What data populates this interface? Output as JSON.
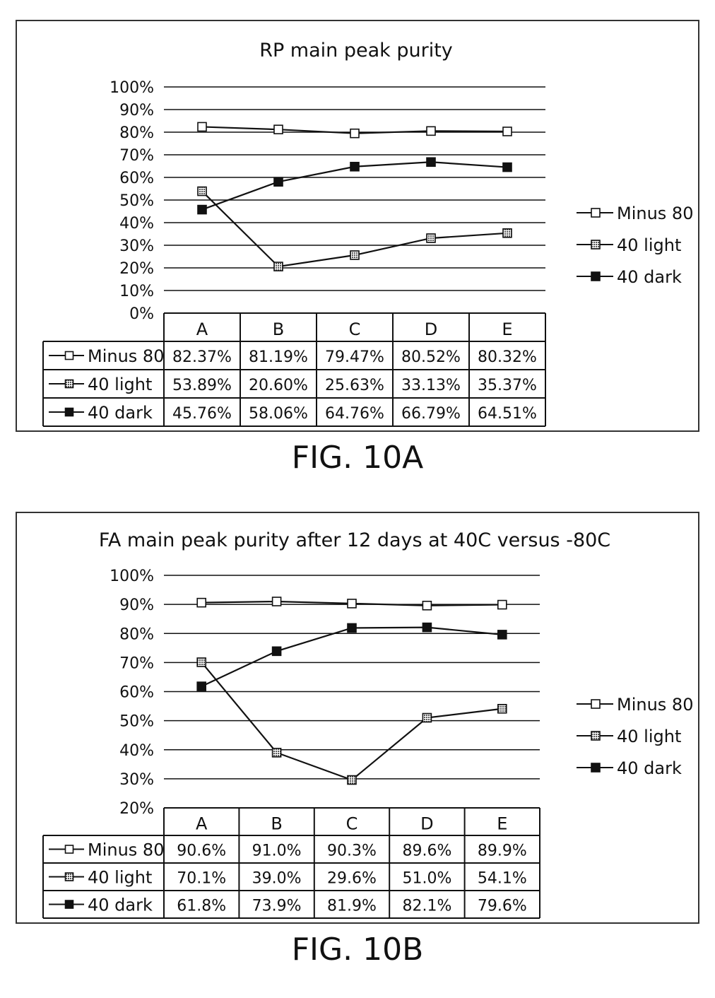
{
  "chart_data": [
    {
      "type": "line",
      "title": "RP main peak purity",
      "categories": [
        "A",
        "B",
        "C",
        "D",
        "E"
      ],
      "ylim": [
        0,
        100
      ],
      "y_ticks": [
        "0%",
        "10%",
        "20%",
        "30%",
        "40%",
        "50%",
        "60%",
        "70%",
        "80%",
        "90%",
        "100%"
      ],
      "grid": true,
      "legend_position": "right",
      "data_table": true,
      "series": [
        {
          "name": "Minus 80",
          "marker": "open-square",
          "values": [
            82.37,
            81.19,
            79.47,
            80.52,
            80.32
          ],
          "labels": [
            "82.37%",
            "81.19%",
            "79.47%",
            "80.52%",
            "80.32%"
          ]
        },
        {
          "name": "40 light",
          "marker": "hatched-square",
          "values": [
            53.89,
            20.6,
            25.63,
            33.13,
            35.37
          ],
          "labels": [
            "53.89%",
            "20.60%",
            "25.63%",
            "33.13%",
            "35.37%"
          ]
        },
        {
          "name": "40 dark",
          "marker": "filled-square",
          "values": [
            45.76,
            58.06,
            64.76,
            66.79,
            64.51
          ],
          "labels": [
            "45.76%",
            "58.06%",
            "64.76%",
            "66.79%",
            "64.51%"
          ]
        }
      ]
    },
    {
      "type": "line",
      "title": "FA main peak purity after 12 days at 40C versus -80C",
      "categories": [
        "A",
        "B",
        "C",
        "D",
        "E"
      ],
      "ylim": [
        20,
        100
      ],
      "y_ticks": [
        "20%",
        "30%",
        "40%",
        "50%",
        "60%",
        "70%",
        "80%",
        "90%",
        "100%"
      ],
      "grid": true,
      "legend_position": "right",
      "data_table": true,
      "series": [
        {
          "name": "Minus 80",
          "marker": "open-square",
          "values": [
            90.6,
            91.0,
            90.3,
            89.6,
            89.9
          ],
          "labels": [
            "90.6%",
            "91.0%",
            "90.3%",
            "89.6%",
            "89.9%"
          ]
        },
        {
          "name": "40 light",
          "marker": "hatched-square",
          "values": [
            70.1,
            39.0,
            29.6,
            51.0,
            54.1
          ],
          "labels": [
            "70.1%",
            "39.0%",
            "29.6%",
            "51.0%",
            "54.1%"
          ]
        },
        {
          "name": "40 dark",
          "marker": "filled-square",
          "values": [
            61.8,
            73.9,
            81.9,
            82.1,
            79.6
          ],
          "labels": [
            "61.8%",
            "73.9%",
            "81.9%",
            "82.1%",
            "79.6%"
          ]
        }
      ]
    }
  ],
  "figures": {
    "a_label": "FIG. 10A",
    "b_label": "FIG. 10B"
  },
  "colors": {
    "line": "#111111",
    "grid": "#111111",
    "hatched_fill": "#9a9a9a"
  }
}
